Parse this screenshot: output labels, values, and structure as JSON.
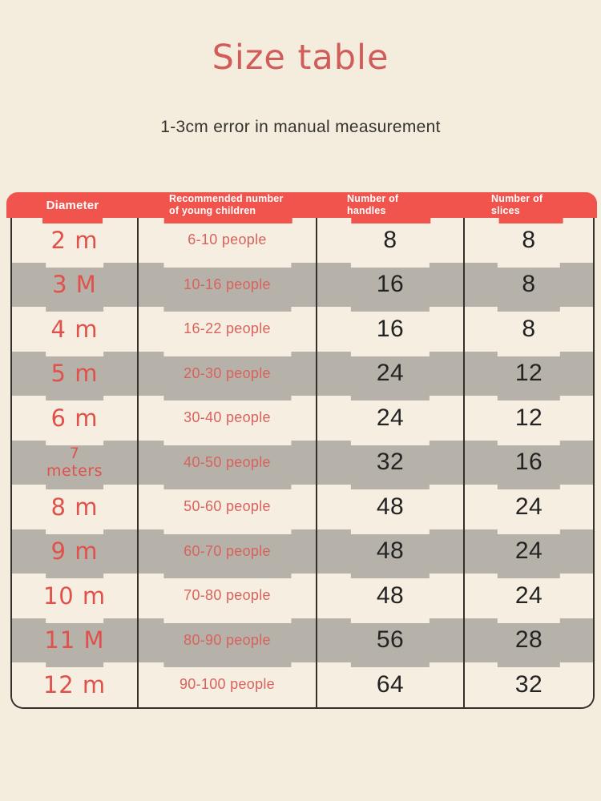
{
  "chart_data": {
    "type": "table",
    "title": "Size table",
    "subtitle": "1-3cm error in manual measurement",
    "columns": [
      "Diameter",
      "Recommended number of young children",
      "Number of handles",
      "Number of slices"
    ],
    "rows": [
      [
        "2 m",
        "6-10 people",
        8,
        8
      ],
      [
        "3 M",
        "10-16 people",
        16,
        8
      ],
      [
        "4 m",
        "16-22 people",
        16,
        8
      ],
      [
        "5 m",
        "20-30 people",
        24,
        12
      ],
      [
        "6 m",
        "30-40 people",
        24,
        12
      ],
      [
        "7 meters",
        "40-50 people",
        32,
        16
      ],
      [
        "8 m",
        "50-60 people",
        48,
        24
      ],
      [
        "9 m",
        "60-70 people",
        48,
        24
      ],
      [
        "10 m",
        "70-80 people",
        48,
        24
      ],
      [
        "11 M",
        "80-90 people",
        56,
        28
      ],
      [
        "12 m",
        "90-100 people",
        64,
        32
      ]
    ],
    "layout": {
      "row_striping": [
        "cream",
        "gray"
      ],
      "header_position": "top"
    }
  },
  "colors": {
    "page-bg": "#f4ecdc",
    "cream": "#f6efe1",
    "gray": "#b6b2a9",
    "header-red": "#f0544d",
    "header-ink": "#ffffff",
    "title-red": "#d15d5b",
    "subtitle-ink": "#35332f",
    "value-red": "#e0514c",
    "people-red": "#d8625d",
    "num-ink": "#232323",
    "line": "#33312a"
  }
}
